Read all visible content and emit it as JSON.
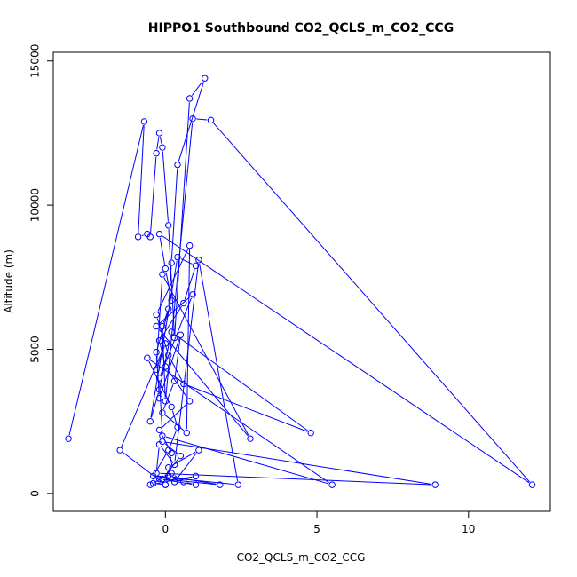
{
  "chart_data": {
    "type": "line",
    "title": "HIPPO1 Southbound CO2_QCLS_m_CO2_CCG",
    "xlabel": "CO2_QCLS_m_CO2_CCG",
    "ylabel": "Altitude (m)",
    "xlim": [
      -3.7,
      12.7
    ],
    "ylim": [
      -620,
      15300
    ],
    "x_ticks": [
      0,
      5,
      10
    ],
    "y_ticks": [
      0,
      5000,
      10000,
      15000
    ],
    "x_tick_labels": [
      "0",
      "5",
      "10"
    ],
    "y_tick_labels": [
      "0",
      "5000",
      "10000",
      "15000"
    ],
    "series_color": "#0000ff",
    "marker": "open-circle",
    "grid": false,
    "series": [
      {
        "x": [
          -3.2,
          -0.7,
          -0.9,
          -0.6,
          -0.5,
          -0.3,
          -0.2,
          -0.1,
          0.1,
          0.3,
          0.8,
          1.3,
          0.4,
          0.2,
          0.1,
          -0.1,
          0.0,
          0.9,
          1.5,
          12.1,
          -0.2,
          0.0,
          0.2,
          -0.3,
          -0.2,
          0.5,
          0.3,
          -0.1,
          0.7,
          0.8,
          -0.3,
          0.1,
          0.6,
          4.8,
          0.2,
          -0.2,
          -0.5,
          0.4,
          1.0,
          0.6,
          -0.2,
          0.0,
          0.8,
          -0.2,
          0.2,
          0.1,
          1.8,
          -0.1,
          0.5,
          -0.1,
          8.9,
          -0.3,
          -0.2,
          0.3,
          1.1,
          2.4,
          -0.4,
          0.1,
          0.4,
          0.2,
          -0.6,
          5.5,
          -0.1,
          -0.2,
          0.9,
          -0.3,
          2.8,
          -0.1,
          -0.3,
          0.0,
          -1.5,
          0.0,
          0.1,
          1.1,
          0.3,
          1.0,
          -0.5,
          0.2,
          0.6,
          1.0,
          -0.2,
          0.0,
          -0.4
        ],
        "y": [
          1900,
          12900,
          8900,
          9000,
          8900,
          11800,
          12500,
          12000,
          9300,
          5400,
          13700,
          14400,
          11400,
          8000,
          6400,
          5800,
          3200,
          13000,
          12950,
          300,
          9000,
          7800,
          6700,
          4900,
          3300,
          5500,
          3900,
          2800,
          2100,
          8600,
          6200,
          4800,
          3800,
          2100,
          5600,
          3600,
          2500,
          8200,
          7900,
          6600,
          5300,
          4400,
          3200,
          2200,
          1400,
          600,
          300,
          500,
          1300,
          1800,
          300,
          700,
          1700,
          1000,
          8100,
          300,
          600,
          1500,
          2300,
          3000,
          4700,
          300,
          2000,
          4000,
          6900,
          5800,
          1900,
          7600,
          4300,
          5200,
          1500,
          300,
          900,
          1500,
          400,
          600,
          300,
          700,
          400,
          300,
          500,
          300,
          350
        ]
      }
    ]
  }
}
